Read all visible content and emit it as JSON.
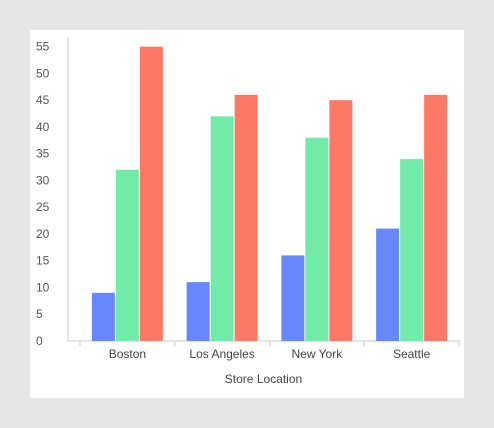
{
  "chart_data": {
    "type": "bar",
    "title": "",
    "xlabel": "Store Location",
    "ylabel": "",
    "categories": [
      "Boston",
      "Los Angeles",
      "New York",
      "Seattle"
    ],
    "series": [
      {
        "values": [
          9,
          11,
          16,
          21
        ],
        "color": "#6688fa"
      },
      {
        "values": [
          32,
          42,
          38,
          34
        ],
        "color": "#72eaa8"
      },
      {
        "values": [
          55,
          46,
          45,
          46
        ],
        "color": "#fd7866"
      }
    ],
    "ylim": [
      0,
      57
    ],
    "yticks": [
      "0",
      "5",
      "10",
      "15",
      "20",
      "25",
      "30",
      "35",
      "40",
      "45",
      "50",
      "55"
    ],
    "grid": false,
    "legend": "none"
  }
}
